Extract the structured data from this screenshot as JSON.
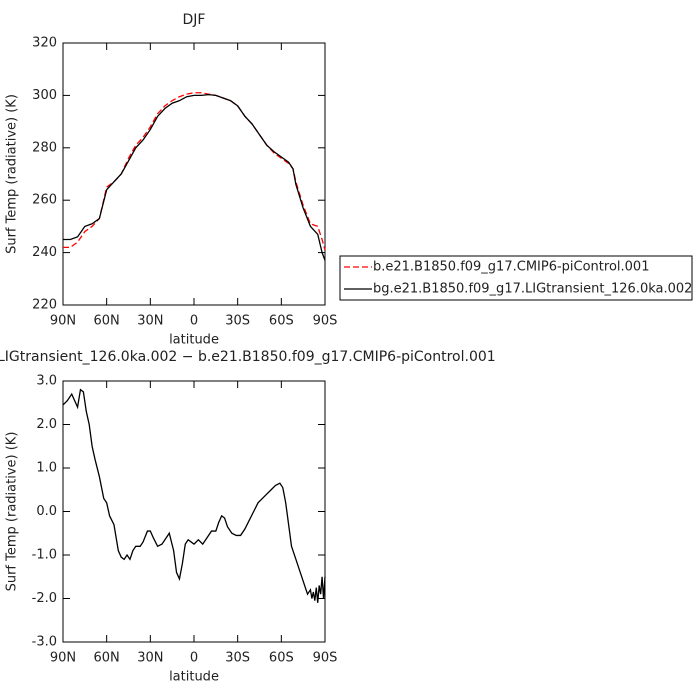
{
  "chart_data": [
    {
      "type": "line",
      "title": "DJF",
      "xlabel": "latitude",
      "ylabel": "Surf Temp (radiative) (K)",
      "xlim": [
        90,
        -90
      ],
      "ylim": [
        220,
        320
      ],
      "xticks": [
        {
          "value": 90,
          "label": "90N"
        },
        {
          "value": 60,
          "label": "60N"
        },
        {
          "value": 30,
          "label": "30N"
        },
        0,
        {
          "value": -30,
          "label": "30S"
        },
        {
          "value": -60,
          "label": "60S"
        },
        {
          "value": -90,
          "label": "90S"
        }
      ],
      "yticks": [
        220,
        240,
        260,
        280,
        300,
        320
      ],
      "grid": false,
      "legend": "right",
      "x": [
        90,
        85,
        80,
        75,
        70,
        65,
        60,
        55,
        50,
        45,
        40,
        35,
        30,
        25,
        20,
        15,
        10,
        5,
        0,
        -5,
        -10,
        -15,
        -20,
        -25,
        -30,
        -35,
        -40,
        -45,
        -50,
        -55,
        -60,
        -65,
        -68,
        -70,
        -75,
        -80,
        -85,
        -88,
        -90
      ],
      "series": [
        {
          "name": "b.e21.B1850.f09_g17.CMIP6-piControl.001",
          "color": "#ff0000",
          "dashed": true,
          "values": [
            242,
            242,
            244,
            248,
            250,
            253,
            265,
            267,
            270,
            276,
            281,
            284,
            288,
            293,
            296,
            298,
            299.5,
            300.5,
            301,
            301,
            300.5,
            300,
            299,
            298,
            296,
            292,
            289,
            285,
            281,
            278,
            276,
            274,
            272,
            267,
            258,
            251,
            250,
            245,
            241
          ]
        },
        {
          "name": "bg.e21.B1850.f09_g17.LIGtransient_126.0ka.002",
          "color": "#000000",
          "dashed": false,
          "values": [
            245,
            245,
            246,
            250,
            251,
            253,
            264,
            267,
            270,
            275,
            280,
            283,
            287,
            292,
            295,
            297,
            298,
            299.5,
            300,
            300,
            300.3,
            300,
            299,
            298,
            296,
            292,
            289,
            285,
            281,
            278.5,
            276.5,
            274.5,
            272,
            266,
            257,
            250,
            247,
            240,
            237
          ]
        }
      ]
    },
    {
      "type": "line",
      "title": "LIGtransient_126.0ka.002 − b.e21.B1850.f09_g17.CMIP6-piControl.001",
      "xlabel": "latitude",
      "ylabel": "Surf Temp (radiative) (K)",
      "xlim": [
        90,
        -90
      ],
      "ylim": [
        -3,
        3
      ],
      "xticks": [
        {
          "value": 90,
          "label": "90N"
        },
        {
          "value": 60,
          "label": "60N"
        },
        {
          "value": 30,
          "label": "30N"
        },
        0,
        {
          "value": -30,
          "label": "30S"
        },
        {
          "value": -60,
          "label": "60S"
        },
        {
          "value": -90,
          "label": "90S"
        }
      ],
      "yticks": [
        {
          "value": -3,
          "label": "-3.0"
        },
        {
          "value": -2,
          "label": "-2.0"
        },
        {
          "value": -1,
          "label": "-1.0"
        },
        {
          "value": 0,
          "label": "0.0"
        },
        {
          "value": 1,
          "label": "1.0"
        },
        {
          "value": 2,
          "label": "2.0"
        },
        {
          "value": 3,
          "label": "3.0"
        }
      ],
      "grid": false,
      "color": "#000000",
      "x": [
        90,
        87,
        84,
        82,
        80,
        78,
        76,
        74,
        72,
        70,
        68,
        65,
        62,
        60,
        58,
        55,
        52,
        50,
        48,
        46,
        44,
        42,
        40,
        37,
        35,
        32,
        30,
        28,
        25,
        22,
        19,
        17,
        14,
        12,
        10,
        8,
        6,
        4,
        2,
        0,
        -3,
        -6,
        -9,
        -12,
        -15,
        -17,
        -19,
        -21,
        -23,
        -26,
        -29,
        -32,
        -35,
        -38,
        -41,
        -44,
        -47,
        -50,
        -53,
        -56,
        -59,
        -61,
        -63,
        -65,
        -67,
        -70,
        -73,
        -76,
        -78,
        -80,
        -81,
        -82,
        -83,
        -84,
        -85,
        -86,
        -87,
        -88,
        -89,
        -90
      ],
      "values": [
        2.45,
        2.55,
        2.7,
        2.55,
        2.4,
        2.8,
        2.75,
        2.3,
        2.0,
        1.5,
        1.2,
        0.8,
        0.3,
        0.2,
        -0.1,
        -0.3,
        -0.9,
        -1.05,
        -1.1,
        -1.0,
        -1.1,
        -0.9,
        -0.8,
        -0.8,
        -0.7,
        -0.45,
        -0.45,
        -0.6,
        -0.8,
        -0.75,
        -0.6,
        -0.5,
        -0.9,
        -1.4,
        -1.55,
        -1.2,
        -0.75,
        -0.65,
        -0.7,
        -0.75,
        -0.65,
        -0.75,
        -0.6,
        -0.45,
        -0.45,
        -0.25,
        -0.1,
        -0.15,
        -0.35,
        -0.5,
        -0.55,
        -0.55,
        -0.4,
        -0.2,
        0.0,
        0.2,
        0.3,
        0.4,
        0.5,
        0.6,
        0.65,
        0.55,
        0.2,
        -0.3,
        -0.8,
        -1.1,
        -1.4,
        -1.7,
        -1.9,
        -1.8,
        -2.0,
        -1.85,
        -2.05,
        -1.75,
        -2.1,
        -1.7,
        -1.9,
        -1.5,
        -2.0,
        -1.5
      ]
    }
  ]
}
